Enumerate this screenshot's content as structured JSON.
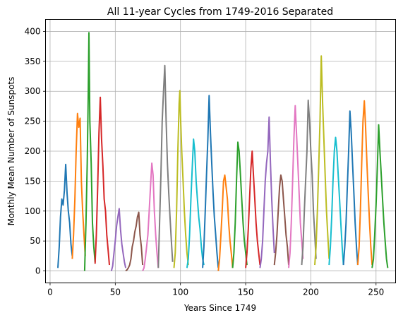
{
  "chart_data": {
    "type": "line",
    "title": "All 11-year Cycles from 1749-2016 Separated",
    "xlabel": "Years Since 1749",
    "ylabel": "Monthly Mean Number of Sunspots",
    "xlim": [
      -3.5,
      265
    ],
    "ylim": [
      -20,
      420
    ],
    "xticks": [
      0,
      50,
      100,
      150,
      200,
      250
    ],
    "yticks": [
      0,
      50,
      100,
      150,
      200,
      250,
      300,
      350,
      400
    ],
    "grid": true,
    "colors": [
      "#1f77b4",
      "#ff7f0e",
      "#2ca02c",
      "#d62728",
      "#9467bd",
      "#8c564b",
      "#e377c2",
      "#7f7f7f",
      "#bcbd22",
      "#17becf"
    ],
    "series": [
      {
        "x": [
          6,
          7,
          8,
          9,
          10,
          11,
          12,
          13,
          14,
          15,
          16,
          17
        ],
        "values": [
          5,
          40,
          90,
          120,
          110,
          135,
          178,
          130,
          100,
          80,
          45,
          25
        ]
      },
      {
        "x": [
          17,
          18,
          19,
          20,
          21,
          22,
          23,
          24,
          25,
          26,
          27
        ],
        "values": [
          20,
          60,
          120,
          200,
          263,
          240,
          255,
          150,
          100,
          60,
          25
        ]
      },
      {
        "x": [
          26.5,
          27.5,
          28.5,
          29.3,
          29.8,
          30.5,
          31.5,
          32.5,
          33.5,
          34.5
        ],
        "values": [
          0,
          80,
          180,
          300,
          398,
          250,
          180,
          80,
          40,
          15
        ]
      },
      {
        "x": [
          34.5,
          35.5,
          36.5,
          37.5,
          38.5,
          39.5,
          40.5,
          41.5,
          42.5,
          43.5,
          44.5,
          45.5
        ],
        "values": [
          12,
          60,
          140,
          230,
          290,
          220,
          175,
          120,
          100,
          60,
          35,
          10
        ]
      },
      {
        "x": [
          47,
          48,
          49,
          50,
          51,
          52,
          53,
          54,
          55,
          56,
          57,
          58
        ],
        "values": [
          0,
          8,
          30,
          50,
          75,
          90,
          104,
          70,
          45,
          30,
          15,
          5
        ]
      },
      {
        "x": [
          58,
          59,
          60,
          61,
          62,
          63,
          64,
          65,
          66,
          67,
          68,
          69,
          70,
          71
        ],
        "values": [
          0,
          2,
          5,
          10,
          20,
          40,
          50,
          65,
          75,
          90,
          98,
          60,
          40,
          10
        ]
      },
      {
        "x": [
          71,
          72,
          73,
          74,
          75,
          76,
          77,
          78,
          79,
          80,
          81,
          82,
          83
        ],
        "values": [
          0,
          5,
          20,
          40,
          60,
          100,
          140,
          180,
          160,
          100,
          60,
          30,
          5
        ]
      },
      {
        "x": [
          83,
          84,
          85,
          86,
          87,
          88,
          89,
          90,
          91,
          92,
          93,
          94
        ],
        "values": [
          5,
          80,
          160,
          250,
          300,
          343,
          250,
          180,
          130,
          90,
          50,
          15
        ]
      },
      {
        "x": [
          95,
          96,
          97,
          98,
          99,
          99.5,
          100,
          101,
          102,
          103,
          104,
          105,
          106
        ],
        "values": [
          5,
          30,
          100,
          200,
          280,
          301,
          260,
          200,
          150,
          100,
          60,
          30,
          10
        ]
      },
      {
        "x": [
          105,
          106,
          107,
          108,
          109,
          110,
          111,
          112,
          113,
          114,
          115,
          116,
          117,
          118
        ],
        "values": [
          5,
          20,
          60,
          120,
          170,
          220,
          200,
          150,
          120,
          90,
          70,
          40,
          20,
          10
        ]
      },
      {
        "x": [
          117,
          118,
          119,
          120,
          121,
          122,
          123,
          124,
          125,
          126,
          127,
          128,
          129
        ],
        "values": [
          5,
          40,
          100,
          160,
          220,
          293,
          230,
          180,
          130,
          90,
          60,
          30,
          5
        ]
      },
      {
        "x": [
          129,
          130,
          131,
          132,
          133,
          134,
          135,
          136,
          137,
          138,
          139,
          140
        ],
        "values": [
          0,
          20,
          60,
          100,
          150,
          160,
          140,
          120,
          80,
          50,
          30,
          5
        ]
      },
      {
        "x": [
          140,
          141,
          142,
          143,
          144,
          145,
          146,
          147,
          148,
          149,
          150,
          151
        ],
        "values": [
          5,
          30,
          80,
          150,
          215,
          200,
          160,
          120,
          80,
          50,
          30,
          10
        ]
      },
      {
        "x": [
          150,
          151,
          152,
          153,
          154,
          155,
          156,
          157,
          158,
          159,
          160,
          161
        ],
        "values": [
          5,
          30,
          70,
          120,
          170,
          200,
          160,
          120,
          80,
          50,
          30,
          10
        ]
      },
      {
        "x": [
          161,
          162,
          163,
          164,
          165,
          166,
          167,
          168,
          169,
          170,
          171,
          172
        ],
        "values": [
          5,
          20,
          50,
          100,
          150,
          180,
          200,
          257,
          180,
          120,
          70,
          30
        ]
      },
      {
        "x": [
          172,
          173,
          174,
          175,
          176,
          177,
          178,
          179,
          180,
          181,
          182,
          183
        ],
        "values": [
          10,
          30,
          60,
          100,
          140,
          160,
          150,
          120,
          90,
          60,
          40,
          10
        ]
      },
      {
        "x": [
          183,
          184,
          185,
          186,
          187,
          188,
          189,
          190,
          191,
          192,
          193,
          194
        ],
        "values": [
          5,
          30,
          80,
          150,
          220,
          276,
          230,
          180,
          130,
          80,
          50,
          20
        ]
      },
      {
        "x": [
          193,
          194,
          195,
          196,
          197,
          198,
          199,
          200,
          201,
          202,
          203,
          204
        ],
        "values": [
          10,
          40,
          100,
          150,
          200,
          285,
          250,
          200,
          160,
          100,
          60,
          20
        ]
      },
      {
        "x": [
          203,
          204,
          205,
          206,
          207,
          208,
          209,
          210,
          211,
          212,
          213,
          214
        ],
        "values": [
          10,
          40,
          100,
          170,
          250,
          359,
          280,
          220,
          160,
          100,
          60,
          20
        ]
      },
      {
        "x": [
          214,
          215,
          216,
          217,
          218,
          219,
          220,
          221,
          222,
          223,
          224,
          225
        ],
        "values": [
          10,
          40,
          90,
          150,
          200,
          223,
          200,
          160,
          120,
          80,
          40,
          10
        ]
      },
      {
        "x": [
          225,
          226,
          227,
          228,
          229,
          230,
          231,
          232,
          233,
          234,
          235,
          236
        ],
        "values": [
          10,
          40,
          80,
          140,
          200,
          267,
          230,
          180,
          130,
          80,
          40,
          10
        ]
      },
      {
        "x": [
          236,
          237,
          238,
          239,
          240,
          241,
          242,
          243,
          244,
          245,
          246,
          247
        ],
        "values": [
          10,
          40,
          100,
          180,
          250,
          284,
          240,
          180,
          130,
          80,
          40,
          10
        ]
      },
      {
        "x": [
          247,
          248,
          249,
          250,
          251,
          252,
          253,
          254,
          255,
          256,
          257,
          258,
          259
        ],
        "values": [
          5,
          20,
          60,
          110,
          170,
          244,
          200,
          160,
          120,
          80,
          50,
          20,
          5
        ]
      }
    ]
  }
}
